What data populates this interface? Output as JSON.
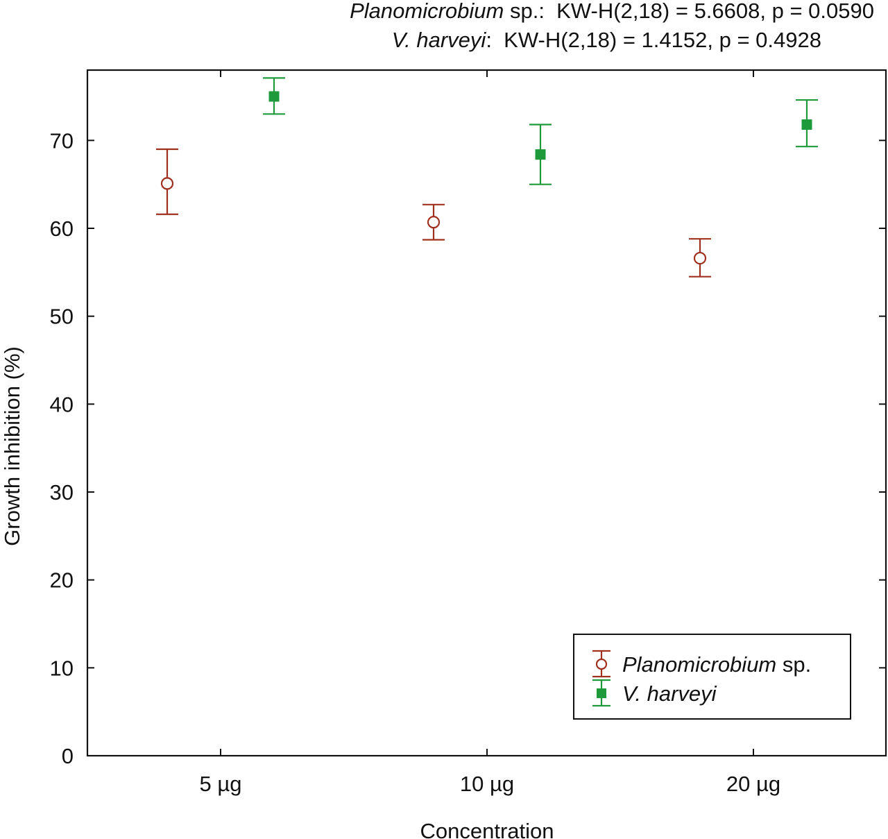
{
  "stats": {
    "planomicrobium": {
      "species": "Planomicrobium",
      "suffix": "sp.:",
      "test": "KW-H(2,18) = 5.6608, p = 0.0590"
    },
    "vharveyi": {
      "species": "V. harveyi",
      "suffix": ":",
      "test": "KW-H(2,18) = 1.4152, p = 0.4928"
    }
  },
  "chart_data": {
    "type": "scatter",
    "title": "",
    "xlabel": "Concentration",
    "ylabel": "Growth inhibition (%)",
    "categories": [
      "5 µg",
      "10 µg",
      "20 µg"
    ],
    "ylim": [
      0,
      78
    ],
    "yticks": [
      0,
      10,
      20,
      30,
      40,
      50,
      60,
      70
    ],
    "legend_position": "bottom-right",
    "series": [
      {
        "name": "Planomicrobium sp.",
        "legend_italic": "Planomicrobium",
        "legend_plain": " sp.",
        "marker": "open-circle",
        "color": "#a0301e",
        "offset": "left",
        "values": [
          65.1,
          60.7,
          56.6
        ],
        "lower": [
          61.6,
          58.7,
          54.5
        ],
        "upper": [
          69.0,
          62.7,
          58.8
        ]
      },
      {
        "name": "V. harveyi",
        "legend_italic": "V. harveyi",
        "legend_plain": "",
        "marker": "filled-square",
        "color": "#1f9a3a",
        "offset": "right",
        "values": [
          75.0,
          68.4,
          71.8
        ],
        "lower": [
          73.0,
          65.0,
          69.3
        ],
        "upper": [
          77.1,
          71.8,
          74.6
        ]
      }
    ]
  }
}
